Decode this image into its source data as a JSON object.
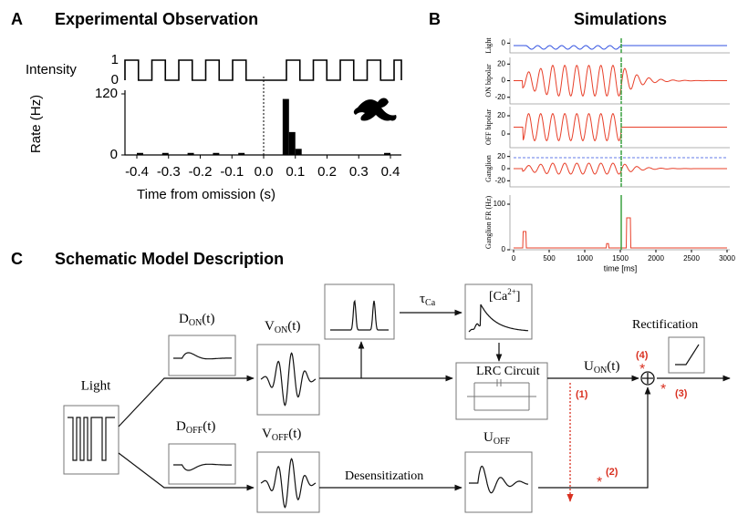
{
  "panel_a": {
    "letter": "A",
    "title": "Experimental Observation",
    "stimulus": {
      "label": "Intensity",
      "yticks": [
        0,
        1
      ]
    },
    "chart": {
      "type": "histogram",
      "ylabel": "Rate (Hz)",
      "xlabel": "Time from omission (s)",
      "xlim": [
        -0.45,
        0.45
      ],
      "ylim": [
        0,
        120
      ],
      "yticks": [
        0,
        120
      ],
      "xticks": [
        -0.4,
        -0.3,
        -0.2,
        -0.1,
        {
          "value": 0,
          "label": "0.0"
        },
        0.1,
        0.2,
        0.3,
        0.4
      ],
      "color": "#000000",
      "bins": [
        -0.44,
        -0.42,
        -0.4,
        -0.38,
        -0.36,
        -0.34,
        -0.32,
        -0.3,
        -0.28,
        -0.26,
        -0.24,
        -0.22,
        -0.2,
        -0.18,
        -0.16,
        -0.14,
        -0.12,
        -0.1,
        -0.08,
        -0.06,
        -0.04,
        -0.02,
        0,
        0.02,
        0.04,
        0.06,
        0.08,
        0.1,
        0.12,
        0.14,
        0.16,
        0.18,
        0.2,
        0.22,
        0.24,
        0.26,
        0.28,
        0.3,
        0.32,
        0.34,
        0.36,
        0.38,
        0.4,
        0.42,
        0.44
      ],
      "values": [
        0,
        0,
        4,
        0,
        0,
        0,
        4,
        0,
        0,
        0,
        4,
        0,
        0,
        0,
        4,
        0,
        0,
        0,
        4,
        0,
        0,
        0,
        0,
        0,
        0,
        110,
        45,
        12,
        0,
        0,
        0,
        0,
        0,
        0,
        0,
        0,
        0,
        0,
        0,
        0,
        0,
        4,
        0,
        0
      ]
    }
  },
  "panel_b": {
    "letter": "B",
    "title": "Simulations",
    "xlabel": "time [ms]",
    "xlim": [
      0,
      3000
    ],
    "xticks": [
      0,
      500,
      1000,
      1500,
      2000,
      2500,
      3000
    ],
    "rows": [
      {
        "ylabel": "Light",
        "ylim": [
          -8,
          4
        ],
        "yticks": [
          0
        ]
      },
      {
        "ylabel": "ON bipolar",
        "ylim": [
          -28,
          28
        ],
        "yticks": [
          -20,
          0,
          20
        ]
      },
      {
        "ylabel": "OFF bipolar",
        "ylim": [
          -15,
          30
        ],
        "yticks": [
          0,
          20
        ]
      },
      {
        "ylabel": "Ganglion",
        "ylim": [
          -30,
          30
        ],
        "yticks": [
          -20,
          0,
          20
        ]
      },
      {
        "ylabel": "Ganglion FR (Hz)",
        "ylim": [
          0,
          120
        ],
        "yticks": [
          0,
          100
        ]
      }
    ]
  },
  "panel_c": {
    "letter": "C",
    "title": "Schematic Model Description",
    "light": "Light",
    "d_on": {
      "name": "D",
      "sub": "ON",
      "arg": "(t)"
    },
    "d_off": {
      "name": "D",
      "sub": "OFF",
      "arg": "(t)"
    },
    "v_on": {
      "name": "V",
      "sub": "ON",
      "arg": "(t)"
    },
    "v_off": {
      "name": "V",
      "sub": "OFF",
      "arg": "(t)"
    },
    "tau": {
      "name": "τ",
      "sub": "Ca"
    },
    "calcium": {
      "open": "[Ca",
      "sup": "2+",
      "close": "]"
    },
    "lrc": "LRC Circuit",
    "u_on": {
      "name": "U",
      "sub": "ON",
      "arg": "(t)"
    },
    "u_off": {
      "name": "U",
      "sub": "OFF"
    },
    "desensitization": "Desensitization",
    "rectification": "Rectification",
    "markers": [
      "(1)",
      "(2)",
      "(3)",
      "(4)"
    ]
  }
}
